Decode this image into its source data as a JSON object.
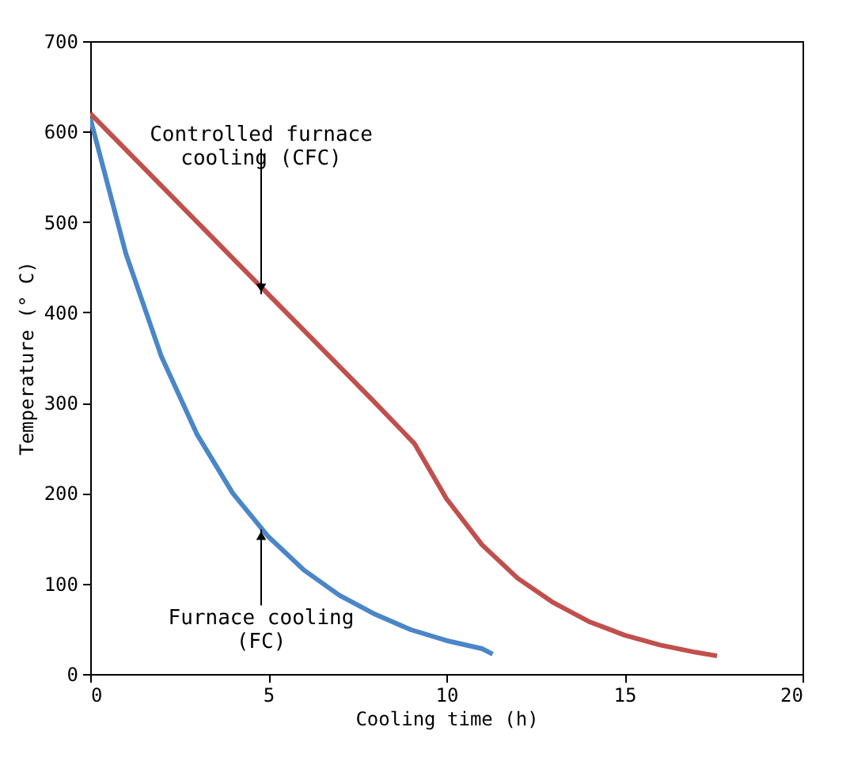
{
  "chart_data": {
    "type": "line",
    "xlabel": "Cooling time (h)",
    "ylabel": "Temperature (° C)",
    "xlim": [
      0,
      20
    ],
    "xticks": [
      0,
      5,
      10,
      15,
      20
    ],
    "ylim": [
      0,
      700
    ],
    "yticks": [
      0,
      100,
      200,
      300,
      400,
      500,
      600,
      700
    ],
    "grid": false,
    "legend": false,
    "marker": "none",
    "line_style": "solid",
    "series": [
      {
        "color": "#4a86c8",
        "x": [
          0,
          1,
          2,
          3,
          4,
          5,
          6,
          7,
          8,
          9,
          10,
          11,
          11.3
        ],
        "values": [
          615,
          465,
          351,
          265,
          200,
          152,
          115,
          87,
          66,
          49,
          37,
          28,
          22
        ]
      },
      {
        "color": "#c0504d",
        "x": [
          0,
          2,
          4,
          6,
          8,
          9.1,
          10,
          11,
          12,
          13,
          14,
          15,
          16,
          17,
          17.6
        ],
        "values": [
          620,
          540,
          460,
          380,
          300,
          255,
          194,
          143,
          106,
          79,
          58,
          43,
          32,
          24,
          20
        ]
      }
    ],
    "annotations": [
      {
        "text": "Controlled furnace\ncooling (CFC)",
        "x": 4.8,
        "y": 420
      },
      {
        "text": "Furnace cooling\n(FC)",
        "x": 4.8,
        "y": 160
      }
    ]
  }
}
